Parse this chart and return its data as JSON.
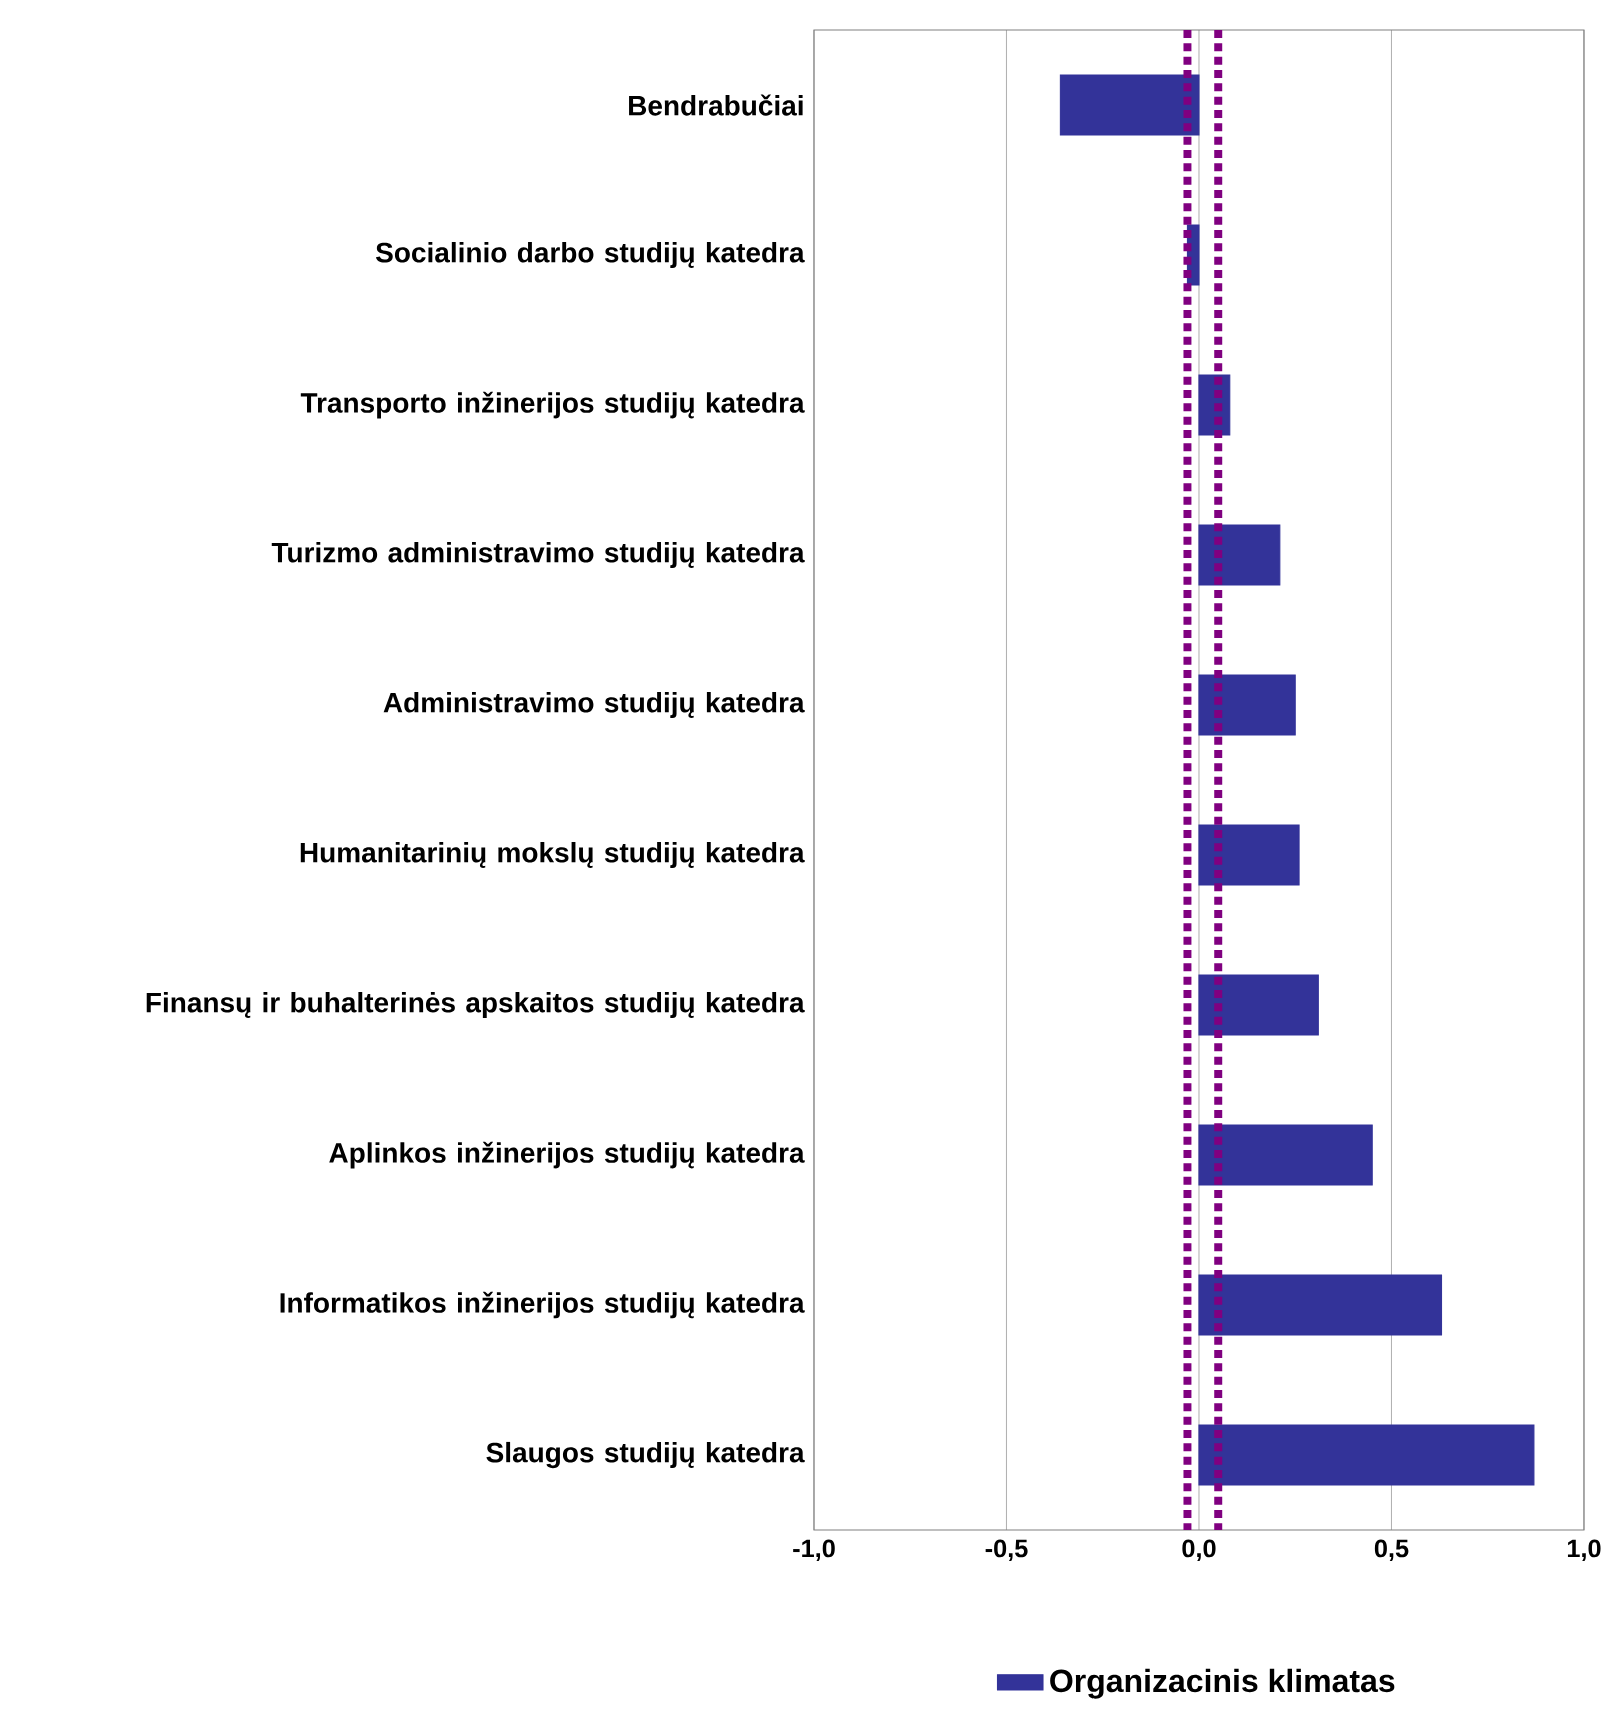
{
  "chart_data": {
    "type": "bar",
    "orientation": "horizontal",
    "categories": [
      "Bendrabučiai",
      "Socialinio darbo studijų katedra",
      "Transporto inžinerijos studijų katedra",
      "Turizmo administravimo studijų katedra",
      "Administravimo studijų katedra",
      "Humanitarinių mokslų studijų katedra",
      "Finansų ir buhalterinės apskaitos studijų katedra",
      "Aplinkos inžinerijos studijų katedra",
      "Informatikos inžinerijos studijų katedra",
      "Slaugos studijų katedra"
    ],
    "series": [
      {
        "name": "Organizacinis klimatas",
        "color": "#333399",
        "values": [
          -0.36,
          -0.03,
          0.08,
          0.21,
          0.25,
          0.26,
          0.31,
          0.45,
          0.63,
          0.87
        ]
      }
    ],
    "xlim": [
      -1,
      1
    ],
    "xticks": [
      {
        "value": -1,
        "label": "-1,0"
      },
      {
        "value": -0.5,
        "label": "-0,5"
      },
      {
        "value": 0,
        "label": "0,0"
      },
      {
        "value": 0.5,
        "label": "0,5"
      },
      {
        "value": 1,
        "label": "1,0"
      }
    ],
    "ref_lines": [
      {
        "axis": "x",
        "value": -0.03,
        "color": "#800080",
        "line_style": "dotted"
      },
      {
        "axis": "x",
        "value": 0.05,
        "color": "#800080",
        "line_style": "dotted"
      }
    ],
    "grid": "x",
    "legend": "bottom"
  }
}
